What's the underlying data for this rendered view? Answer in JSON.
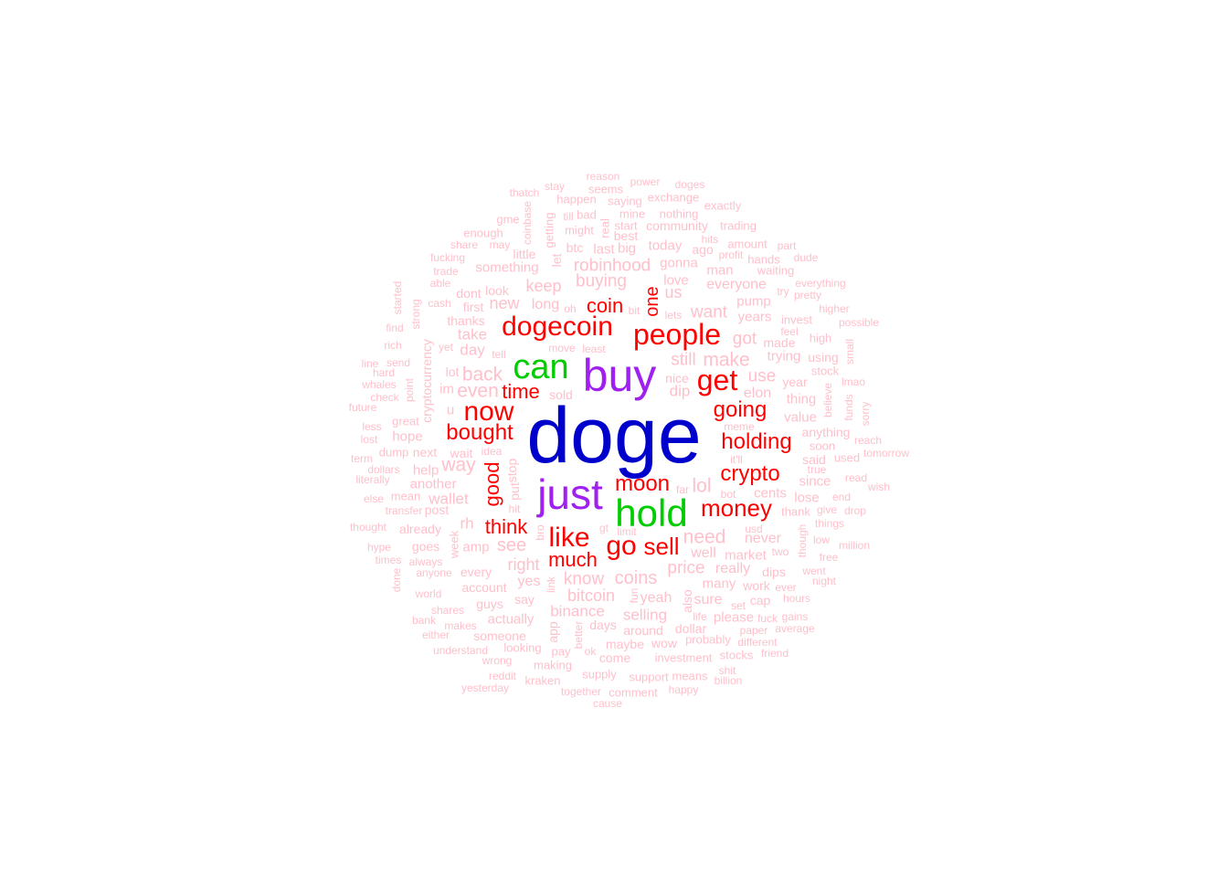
{
  "colors": {
    "tier1": "#0000cd",
    "tier2": "#a020f0",
    "tier3": "#00cd00",
    "tier4": "#ff0000",
    "tier5": "#ffc0cb"
  },
  "words": [
    {
      "text": "doge",
      "tier": 1
    },
    {
      "text": "buy",
      "tier": 2
    },
    {
      "text": "just",
      "tier": 2
    },
    {
      "text": "hold",
      "tier": 3
    },
    {
      "text": "can",
      "tier": 3
    },
    {
      "text": "people",
      "tier": 4
    },
    {
      "text": "dogecoin",
      "tier": 4
    },
    {
      "text": "get",
      "tier": 4
    },
    {
      "text": "now",
      "tier": 4
    },
    {
      "text": "like",
      "tier": 4
    },
    {
      "text": "money",
      "tier": 4
    },
    {
      "text": "crypto",
      "tier": 4
    },
    {
      "text": "holding",
      "tier": 4
    },
    {
      "text": "going",
      "tier": 4
    },
    {
      "text": "bought",
      "tier": 4
    },
    {
      "text": "moon",
      "tier": 4
    },
    {
      "text": "sell",
      "tier": 4
    },
    {
      "text": "go",
      "tier": 4
    },
    {
      "text": "much",
      "tier": 4
    },
    {
      "text": "think",
      "tier": 4
    },
    {
      "text": "time",
      "tier": 4
    },
    {
      "text": "coin",
      "tier": 4
    },
    {
      "text": "good",
      "tier": 4
    },
    {
      "text": "one",
      "tier": 4
    },
    {
      "text": "reason",
      "tier": 5
    },
    {
      "text": "power",
      "tier": 5
    },
    {
      "text": "thatch",
      "tier": 5
    },
    {
      "text": "stay",
      "tier": 5
    },
    {
      "text": "seems",
      "tier": 5
    },
    {
      "text": "doges",
      "tier": 5
    },
    {
      "text": "happen",
      "tier": 5
    },
    {
      "text": "saying",
      "tier": 5
    },
    {
      "text": "exchange",
      "tier": 5
    },
    {
      "text": "exactly",
      "tier": 5
    },
    {
      "text": "coinbase",
      "tier": 5
    },
    {
      "text": "till",
      "tier": 5
    },
    {
      "text": "bad",
      "tier": 5
    },
    {
      "text": "mine",
      "tier": 5
    },
    {
      "text": "nothing",
      "tier": 5
    },
    {
      "text": "gme",
      "tier": 5
    },
    {
      "text": "getting",
      "tier": 5
    },
    {
      "text": "real",
      "tier": 5
    },
    {
      "text": "start",
      "tier": 5
    },
    {
      "text": "community",
      "tier": 5
    },
    {
      "text": "trading",
      "tier": 5
    },
    {
      "text": "enough",
      "tier": 5
    },
    {
      "text": "might",
      "tier": 5
    },
    {
      "text": "best",
      "tier": 5
    },
    {
      "text": "share",
      "tier": 5
    },
    {
      "text": "may",
      "tier": 5
    },
    {
      "text": "btc",
      "tier": 5
    },
    {
      "text": "last",
      "tier": 5
    },
    {
      "text": "big",
      "tier": 5
    },
    {
      "text": "today",
      "tier": 5
    },
    {
      "text": "ago",
      "tier": 5
    },
    {
      "text": "hits",
      "tier": 5
    },
    {
      "text": "amount",
      "tier": 5
    },
    {
      "text": "part",
      "tier": 5
    },
    {
      "text": "fucking",
      "tier": 5
    },
    {
      "text": "little",
      "tier": 5
    },
    {
      "text": "let",
      "tier": 5
    },
    {
      "text": "profit",
      "tier": 5
    },
    {
      "text": "hands",
      "tier": 5
    },
    {
      "text": "dude",
      "tier": 5
    },
    {
      "text": "trade",
      "tier": 5
    },
    {
      "text": "something",
      "tier": 5
    },
    {
      "text": "robinhood",
      "tier": 5
    },
    {
      "text": "gonna",
      "tier": 5
    },
    {
      "text": "man",
      "tier": 5
    },
    {
      "text": "waiting",
      "tier": 5
    },
    {
      "text": "able",
      "tier": 5
    },
    {
      "text": "buying",
      "tier": 5
    },
    {
      "text": "love",
      "tier": 5
    },
    {
      "text": "everything",
      "tier": 5
    },
    {
      "text": "started",
      "tier": 5
    },
    {
      "text": "dont",
      "tier": 5
    },
    {
      "text": "look",
      "tier": 5
    },
    {
      "text": "keep",
      "tier": 5
    },
    {
      "text": "us",
      "tier": 5
    },
    {
      "text": "everyone",
      "tier": 5
    },
    {
      "text": "try",
      "tier": 5
    },
    {
      "text": "pretty",
      "tier": 5
    },
    {
      "text": "cash",
      "tier": 5
    },
    {
      "text": "first",
      "tier": 5
    },
    {
      "text": "new",
      "tier": 5
    },
    {
      "text": "long",
      "tier": 5
    },
    {
      "text": "oh",
      "tier": 5
    },
    {
      "text": "pump",
      "tier": 5
    },
    {
      "text": "higher",
      "tier": 5
    },
    {
      "text": "strong",
      "tier": 5
    },
    {
      "text": "thanks",
      "tier": 5
    },
    {
      "text": "want",
      "tier": 5
    },
    {
      "text": "years",
      "tier": 5
    },
    {
      "text": "invest",
      "tier": 5
    },
    {
      "text": "possible",
      "tier": 5
    },
    {
      "text": "find",
      "tier": 5
    },
    {
      "text": "take",
      "tier": 5
    },
    {
      "text": "lets",
      "tier": 5
    },
    {
      "text": "feel",
      "tier": 5
    },
    {
      "text": "rich",
      "tier": 5
    },
    {
      "text": "cryptocurrency",
      "tier": 5
    },
    {
      "text": "yet",
      "tier": 5
    },
    {
      "text": "day",
      "tier": 5
    },
    {
      "text": "move",
      "tier": 5
    },
    {
      "text": "least",
      "tier": 5
    },
    {
      "text": "got",
      "tier": 5
    },
    {
      "text": "made",
      "tier": 5
    },
    {
      "text": "high",
      "tier": 5
    },
    {
      "text": "line",
      "tier": 5
    },
    {
      "text": "send",
      "tier": 5
    },
    {
      "text": "tell",
      "tier": 5
    },
    {
      "text": "still",
      "tier": 5
    },
    {
      "text": "make",
      "tier": 5
    },
    {
      "text": "trying",
      "tier": 5
    },
    {
      "text": "using",
      "tier": 5
    },
    {
      "text": "small",
      "tier": 5
    },
    {
      "text": "hard",
      "tier": 5
    },
    {
      "text": "lot",
      "tier": 5
    },
    {
      "text": "back",
      "tier": 5
    },
    {
      "text": "stock",
      "tier": 5
    },
    {
      "text": "whales",
      "tier": 5
    },
    {
      "text": "point",
      "tier": 5
    },
    {
      "text": "nice",
      "tier": 5
    },
    {
      "text": "use",
      "tier": 5
    },
    {
      "text": "year",
      "tier": 5
    },
    {
      "text": "lmao",
      "tier": 5
    },
    {
      "text": "check",
      "tier": 5
    },
    {
      "text": "im",
      "tier": 5
    },
    {
      "text": "even",
      "tier": 5
    },
    {
      "text": "sold",
      "tier": 5
    },
    {
      "text": "dip",
      "tier": 5
    },
    {
      "text": "elon",
      "tier": 5
    },
    {
      "text": "thing",
      "tier": 5
    },
    {
      "text": "believe",
      "tier": 5
    },
    {
      "text": "funds",
      "tier": 5
    },
    {
      "text": "future",
      "tier": 5
    },
    {
      "text": "u",
      "tier": 5
    },
    {
      "text": "sorry",
      "tier": 5
    },
    {
      "text": "great",
      "tier": 5
    },
    {
      "text": "value",
      "tier": 5
    },
    {
      "text": "less",
      "tier": 5
    },
    {
      "text": "meme",
      "tier": 5
    },
    {
      "text": "anything",
      "tier": 5
    },
    {
      "text": "lost",
      "tier": 5
    },
    {
      "text": "hope",
      "tier": 5
    },
    {
      "text": "reach",
      "tier": 5
    },
    {
      "text": "soon",
      "tier": 5
    },
    {
      "text": "dump",
      "tier": 5
    },
    {
      "text": "next",
      "tier": 5
    },
    {
      "text": "wait",
      "tier": 5
    },
    {
      "text": "idea",
      "tier": 5
    },
    {
      "text": "tomorrow",
      "tier": 5
    },
    {
      "text": "term",
      "tier": 5
    },
    {
      "text": "it'll",
      "tier": 5
    },
    {
      "text": "said",
      "tier": 5
    },
    {
      "text": "used",
      "tier": 5
    },
    {
      "text": "way",
      "tier": 5
    },
    {
      "text": "stop",
      "tier": 5
    },
    {
      "text": "dollars",
      "tier": 5
    },
    {
      "text": "help",
      "tier": 5
    },
    {
      "text": "true",
      "tier": 5
    },
    {
      "text": "literally",
      "tier": 5
    },
    {
      "text": "read",
      "tier": 5
    },
    {
      "text": "another",
      "tier": 5
    },
    {
      "text": "put",
      "tier": 5
    },
    {
      "text": "lol",
      "tier": 5
    },
    {
      "text": "since",
      "tier": 5
    },
    {
      "text": "wish",
      "tier": 5
    },
    {
      "text": "mean",
      "tier": 5
    },
    {
      "text": "bot",
      "tier": 5
    },
    {
      "text": "cents",
      "tier": 5
    },
    {
      "text": "end",
      "tier": 5
    },
    {
      "text": "else",
      "tier": 5
    },
    {
      "text": "wallet",
      "tier": 5
    },
    {
      "text": "lose",
      "tier": 5
    },
    {
      "text": "thank",
      "tier": 5
    },
    {
      "text": "give",
      "tier": 5
    },
    {
      "text": "drop",
      "tier": 5
    },
    {
      "text": "transfer",
      "tier": 5
    },
    {
      "text": "post",
      "tier": 5
    },
    {
      "text": "hit",
      "tier": 5
    },
    {
      "text": "rh",
      "tier": 5
    },
    {
      "text": "things",
      "tier": 5
    },
    {
      "text": "thought",
      "tier": 5
    },
    {
      "text": "already",
      "tier": 5
    },
    {
      "text": "gt",
      "tier": 5
    },
    {
      "text": "limit",
      "tier": 5
    },
    {
      "text": "usd",
      "tier": 5
    },
    {
      "text": "though",
      "tier": 5
    },
    {
      "text": "need",
      "tier": 5
    },
    {
      "text": "never",
      "tier": 5
    },
    {
      "text": "low",
      "tier": 5
    },
    {
      "text": "hype",
      "tier": 5
    },
    {
      "text": "goes",
      "tier": 5
    },
    {
      "text": "amp",
      "tier": 5
    },
    {
      "text": "see",
      "tier": 5
    },
    {
      "text": "bro",
      "tier": 5
    },
    {
      "text": "million",
      "tier": 5
    },
    {
      "text": "week",
      "tier": 5
    },
    {
      "text": "well",
      "tier": 5
    },
    {
      "text": "market",
      "tier": 5
    },
    {
      "text": "two",
      "tier": 5
    },
    {
      "text": "times",
      "tier": 5
    },
    {
      "text": "always",
      "tier": 5
    },
    {
      "text": "right",
      "tier": 5
    },
    {
      "text": "free",
      "tier": 5
    },
    {
      "text": "anyone",
      "tier": 5
    },
    {
      "text": "every",
      "tier": 5
    },
    {
      "text": "price",
      "tier": 5
    },
    {
      "text": "really",
      "tier": 5
    },
    {
      "text": "dips",
      "tier": 5
    },
    {
      "text": "went",
      "tier": 5
    },
    {
      "text": "done",
      "tier": 5
    },
    {
      "text": "know",
      "tier": 5
    },
    {
      "text": "coins",
      "tier": 5
    },
    {
      "text": "yes",
      "tier": 5
    },
    {
      "text": "link",
      "tier": 5
    },
    {
      "text": "many",
      "tier": 5
    },
    {
      "text": "work",
      "tier": 5
    },
    {
      "text": "night",
      "tier": 5
    },
    {
      "text": "ever",
      "tier": 5
    },
    {
      "text": "account",
      "tier": 5
    },
    {
      "text": "world",
      "tier": 5
    },
    {
      "text": "bitcoin",
      "tier": 5
    },
    {
      "text": "fun",
      "tier": 5
    },
    {
      "text": "yeah",
      "tier": 5
    },
    {
      "text": "cap",
      "tier": 5
    },
    {
      "text": "hours",
      "tier": 5
    },
    {
      "text": "say",
      "tier": 5
    },
    {
      "text": "sure",
      "tier": 5
    },
    {
      "text": "guys",
      "tier": 5
    },
    {
      "text": "set",
      "tier": 5
    },
    {
      "text": "shares",
      "tier": 5
    },
    {
      "text": "binance",
      "tier": 5
    },
    {
      "text": "also",
      "tier": 5
    },
    {
      "text": "fuck",
      "tier": 5
    },
    {
      "text": "gains",
      "tier": 5
    },
    {
      "text": "life",
      "tier": 5
    },
    {
      "text": "bank",
      "tier": 5
    },
    {
      "text": "actually",
      "tier": 5
    },
    {
      "text": "please",
      "tier": 5
    },
    {
      "text": "selling",
      "tier": 5
    },
    {
      "text": "makes",
      "tier": 5
    },
    {
      "text": "days",
      "tier": 5
    },
    {
      "text": "dollar",
      "tier": 5
    },
    {
      "text": "paper",
      "tier": 5
    },
    {
      "text": "average",
      "tier": 5
    },
    {
      "text": "app",
      "tier": 5
    },
    {
      "text": "around",
      "tier": 5
    },
    {
      "text": "either",
      "tier": 5
    },
    {
      "text": "someone",
      "tier": 5
    },
    {
      "text": "probably",
      "tier": 5
    },
    {
      "text": "better",
      "tier": 5
    },
    {
      "text": "different",
      "tier": 5
    },
    {
      "text": "looking",
      "tier": 5
    },
    {
      "text": "maybe",
      "tier": 5
    },
    {
      "text": "wow",
      "tier": 5
    },
    {
      "text": "understand",
      "tier": 5
    },
    {
      "text": "pay",
      "tier": 5
    },
    {
      "text": "ok",
      "tier": 5
    },
    {
      "text": "stocks",
      "tier": 5
    },
    {
      "text": "friend",
      "tier": 5
    },
    {
      "text": "come",
      "tier": 5
    },
    {
      "text": "investment",
      "tier": 5
    },
    {
      "text": "wrong",
      "tier": 5
    },
    {
      "text": "making",
      "tier": 5
    },
    {
      "text": "shit",
      "tier": 5
    },
    {
      "text": "reddit",
      "tier": 5
    },
    {
      "text": "supply",
      "tier": 5
    },
    {
      "text": "support",
      "tier": 5
    },
    {
      "text": "means",
      "tier": 5
    },
    {
      "text": "kraken",
      "tier": 5
    },
    {
      "text": "billion",
      "tier": 5
    },
    {
      "text": "yesterday",
      "tier": 5
    },
    {
      "text": "happy",
      "tier": 5
    },
    {
      "text": "together",
      "tier": 5
    },
    {
      "text": "comment",
      "tier": 5
    },
    {
      "text": "cause",
      "tier": 5
    },
    {
      "text": "far",
      "tier": 5
    },
    {
      "text": "bit",
      "tier": 5
    }
  ]
}
